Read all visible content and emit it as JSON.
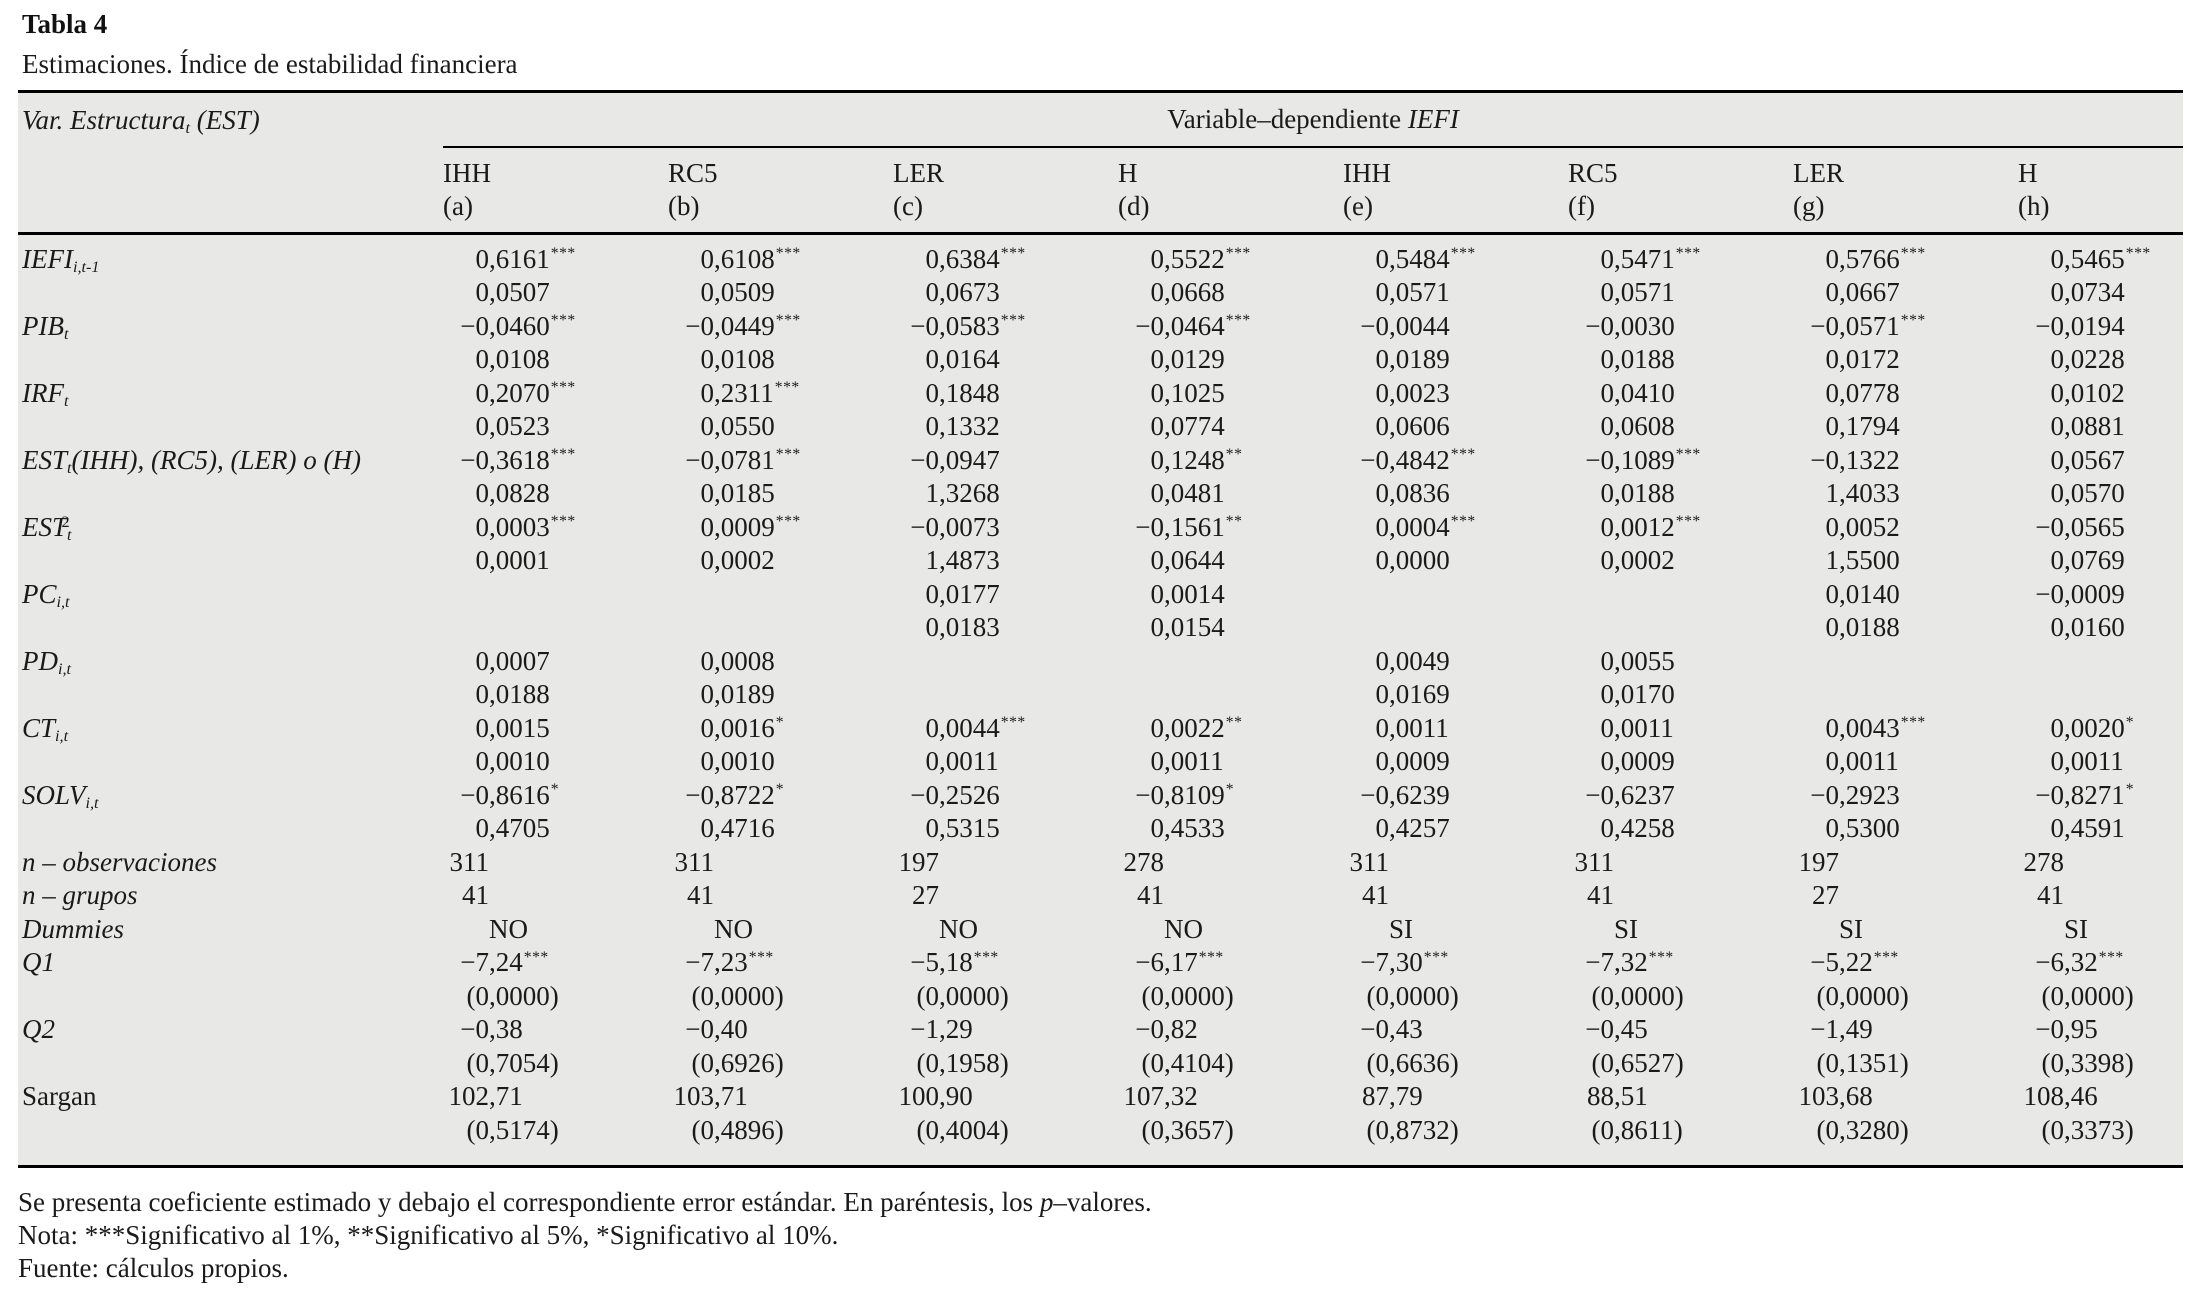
{
  "page": {
    "title": "Tabla 4",
    "subtitle": "Estimaciones. Índice de estabilidad financiera"
  },
  "colors": {
    "table_background": "#e8e8e6",
    "rule": "#000000",
    "text": "#1a1a1a"
  },
  "table": {
    "corner": [
      [
        "i",
        "Var. Estructura"
      ],
      [
        "sub",
        "t"
      ],
      [
        "i",
        " ("
      ],
      [
        "i",
        "EST"
      ],
      [
        "i",
        ")"
      ]
    ],
    "span_header": [
      [
        "",
        "Variable–dependiente "
      ],
      [
        "i",
        "IEFI"
      ]
    ],
    "columns": [
      {
        "top": "IHH",
        "bottom": "(a)"
      },
      {
        "top": "RC5",
        "bottom": "(b)"
      },
      {
        "top": "LER",
        "bottom": "(c)"
      },
      {
        "top": "H",
        "bottom": "(d)"
      },
      {
        "top": "IHH",
        "bottom": "(e)"
      },
      {
        "top": "RC5",
        "bottom": "(f)"
      },
      {
        "top": "LER",
        "bottom": "(g)"
      },
      {
        "top": "H",
        "bottom": "(h)"
      }
    ],
    "rows": [
      {
        "label": [
          [
            "i",
            "IEFI"
          ],
          [
            "sub",
            "i,t-1"
          ]
        ],
        "line1": [
          "0,6161***",
          "0,6108***",
          "0,6384***",
          "0,5522***",
          "0,5484***",
          "0,5471***",
          "0,5766***",
          "0,5465***"
        ],
        "line2": [
          "0,0507",
          "0,0509",
          "0,0673",
          "0,0668",
          "0,0571",
          "0,0571",
          "0,0667",
          "0,0734"
        ]
      },
      {
        "label": [
          [
            "i",
            "PIB"
          ],
          [
            "sub",
            "t"
          ]
        ],
        "line1": [
          "−0,0460***",
          "−0,0449***",
          "−0,0583***",
          "−0,0464***",
          "−0,0044",
          "−0,0030",
          "−0,0571***",
          "−0,0194"
        ],
        "line2": [
          "0,0108",
          "0,0108",
          "0,0164",
          "0,0129",
          "0,0189",
          "0,0188",
          "0,0172",
          "0,0228"
        ]
      },
      {
        "label": [
          [
            "i",
            "IRF"
          ],
          [
            "sub",
            "t"
          ]
        ],
        "line1": [
          "0,2070***",
          "0,2311***",
          "0,1848",
          "0,1025",
          "0,0023",
          "0,0410",
          "0,0778",
          "0,0102"
        ],
        "line2": [
          "0,0523",
          "0,0550",
          "0,1332",
          "0,0774",
          "0,0606",
          "0,0608",
          "0,1794",
          "0,0881"
        ]
      },
      {
        "label": [
          [
            "i",
            "EST"
          ],
          [
            "sub",
            "t"
          ],
          [
            "i",
            "(IHH), (RC5), (LER) o (H)"
          ]
        ],
        "line1": [
          "−0,3618***",
          "−0,0781***",
          "−0,0947",
          "0,1248**",
          "−0,4842***",
          "−0,1089***",
          "−0,1322",
          "0,0567"
        ],
        "line2": [
          "0,0828",
          "0,0185",
          "1,3268",
          "0,0481",
          "0,0836",
          "0,0188",
          "1,4033",
          "0,0570"
        ]
      },
      {
        "label": [
          [
            "i",
            "EST"
          ],
          [
            "sub",
            "t"
          ],
          [
            "sups",
            "2"
          ]
        ],
        "line1": [
          "0,0003***",
          "0,0009***",
          "−0,0073",
          "−0,1561**",
          "0,0004***",
          "0,0012***",
          "0,0052",
          "−0,0565"
        ],
        "line2": [
          "0,0001",
          "0,0002",
          "1,4873",
          "0,0644",
          "0,0000",
          "0,0002",
          "1,5500",
          "0,0769"
        ]
      },
      {
        "label": [
          [
            "i",
            "PC"
          ],
          [
            "sub",
            "i,t"
          ]
        ],
        "line1": [
          "",
          "",
          "0,0177",
          "0,0014",
          "",
          "",
          "0,0140",
          "−0,0009"
        ],
        "line2": [
          "",
          "",
          "0,0183",
          "0,0154",
          "",
          "",
          "0,0188",
          "0,0160"
        ]
      },
      {
        "label": [
          [
            "i",
            "PD"
          ],
          [
            "sub",
            "i,t"
          ]
        ],
        "line1": [
          "0,0007",
          "0,0008",
          "",
          "",
          "0,0049",
          "0,0055",
          "",
          ""
        ],
        "line2": [
          "0,0188",
          "0,0189",
          "",
          "",
          "0,0169",
          "0,0170",
          "",
          ""
        ]
      },
      {
        "label": [
          [
            "i",
            "CT"
          ],
          [
            "sub",
            "i,t"
          ]
        ],
        "line1": [
          "0,0015",
          "0,0016*",
          "0,0044***",
          "0,0022**",
          "0,0011",
          "0,0011",
          "0,0043***",
          "0,0020*"
        ],
        "line2": [
          "0,0010",
          "0,0010",
          "0,0011",
          "0,0011",
          "0,0009",
          "0,0009",
          "0,0011",
          "0,0011"
        ]
      },
      {
        "label": [
          [
            "i",
            "SOLV"
          ],
          [
            "sub",
            "i,t"
          ]
        ],
        "line1": [
          "−0,8616*",
          "−0,8722*",
          "−0,2526",
          "−0,8109*",
          "−0,6239",
          "−0,6237",
          "−0,2923",
          "−0,8271*"
        ],
        "line2": [
          "0,4705",
          "0,4716",
          "0,5315",
          "0,4533",
          "0,4257",
          "0,4258",
          "0,5300",
          "0,4591"
        ]
      },
      {
        "label": [
          [
            "i",
            "n – observaciones"
          ]
        ],
        "line1": [
          "311",
          "311",
          "197",
          "278",
          "311",
          "311",
          "197",
          "278"
        ],
        "line2": null
      },
      {
        "label": [
          [
            "i",
            "n – grupos"
          ]
        ],
        "line1": [
          "41",
          "41",
          "27",
          "41",
          "41",
          "41",
          "27",
          "41"
        ],
        "line2": null
      },
      {
        "label": [
          [
            "i",
            "Dummies"
          ]
        ],
        "line1": [
          "NO",
          "NO",
          "NO",
          "NO",
          "SI",
          "SI",
          "SI",
          "SI"
        ],
        "line2": null
      },
      {
        "label": [
          [
            "i",
            "Q1"
          ]
        ],
        "line1": [
          "−7,24***",
          "−7,23***",
          "−5,18***",
          "−6,17***",
          "−7,30***",
          "−7,32***",
          "−5,22***",
          "−6,32***"
        ],
        "line2": [
          "(0,0000)",
          "(0,0000)",
          "(0,0000)",
          "(0,0000)",
          "(0,0000)",
          "(0,0000)",
          "(0,0000)",
          "(0,0000)"
        ]
      },
      {
        "label": [
          [
            "i",
            "Q2"
          ]
        ],
        "line1": [
          "−0,38",
          "−0,40",
          "−1,29",
          "−0,82",
          "−0,43",
          "−0,45",
          "−1,49",
          "−0,95"
        ],
        "line2": [
          "(0,7054)",
          "(0,6926)",
          "(0,1958)",
          "(0,4104)",
          "(0,6636)",
          "(0,6527)",
          "(0,1351)",
          "(0,3398)"
        ]
      },
      {
        "label": [
          [
            "",
            "Sargan"
          ]
        ],
        "line1": [
          "102,71",
          "103,71",
          "100,90",
          "107,32",
          "87,79",
          "88,51",
          "103,68",
          "108,46"
        ],
        "line2": [
          "(0,5174)",
          "(0,4896)",
          "(0,4004)",
          "(0,3657)",
          "(0,8732)",
          "(0,8611)",
          "(0,3280)",
          "(0,3373)"
        ]
      }
    ]
  },
  "footnotes": [
    [
      [
        "",
        "Se presenta coeficiente estimado y debajo el correspondiente error estándar. En paréntesis, los "
      ],
      [
        "i",
        "p"
      ],
      [
        "",
        "–valores."
      ]
    ],
    [
      [
        "",
        "Nota: ***Significativo al 1%, **Significativo al 5%, *Significativo al 10%."
      ]
    ],
    [
      [
        "",
        "Fuente: cálculos propios."
      ]
    ]
  ]
}
